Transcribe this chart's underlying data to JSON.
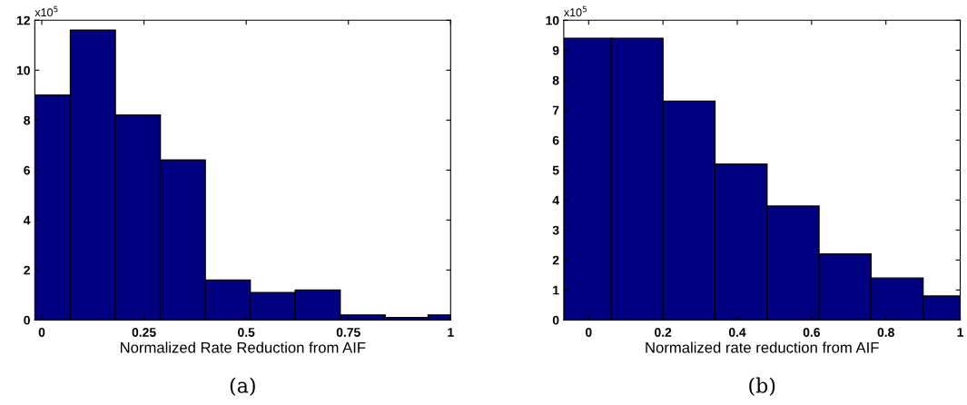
{
  "chart_data": [
    {
      "type": "histogram",
      "xlabel": "Normalized Rate Reduction from AIF",
      "annotations": [
        "x10$^{5}$",
        "(a)"
      ],
      "bins": [
        -0.017,
        0.07,
        0.18,
        0.29,
        0.4,
        0.51,
        0.62,
        0.73,
        0.84,
        0.945,
        1.0
      ],
      "values": [
        9.0,
        11.6,
        8.2,
        6.4,
        1.6,
        1.1,
        1.2,
        0.2,
        0.1,
        0.2
      ],
      "color": "#000080",
      "xlim": [
        -0.017,
        1
      ],
      "xticks": [
        0,
        0.25,
        0.5,
        0.75,
        1
      ],
      "ylim": [
        0,
        12
      ],
      "yticks": [
        0,
        2,
        4,
        6,
        8,
        10,
        12
      ],
      "grid": false
    },
    {
      "type": "histogram",
      "xlabel": "Normalized rate reduction from AIF",
      "annotations": [
        "x10$^{5}$",
        "(b)"
      ],
      "bins": [
        -0.067,
        0.06,
        0.2,
        0.34,
        0.48,
        0.62,
        0.76,
        0.9,
        1.0
      ],
      "values": [
        9.4,
        9.4,
        7.3,
        5.2,
        3.8,
        2.2,
        1.4,
        0.8
      ],
      "color": "#000080",
      "xlim": [
        -0.067,
        1
      ],
      "xticks": [
        0,
        0.2,
        0.4,
        0.6,
        0.8,
        1
      ],
      "ylim": [
        0,
        10
      ],
      "yticks": [
        0,
        1,
        2,
        3,
        4,
        5,
        6,
        7,
        8,
        9,
        10
      ],
      "grid": false
    }
  ]
}
